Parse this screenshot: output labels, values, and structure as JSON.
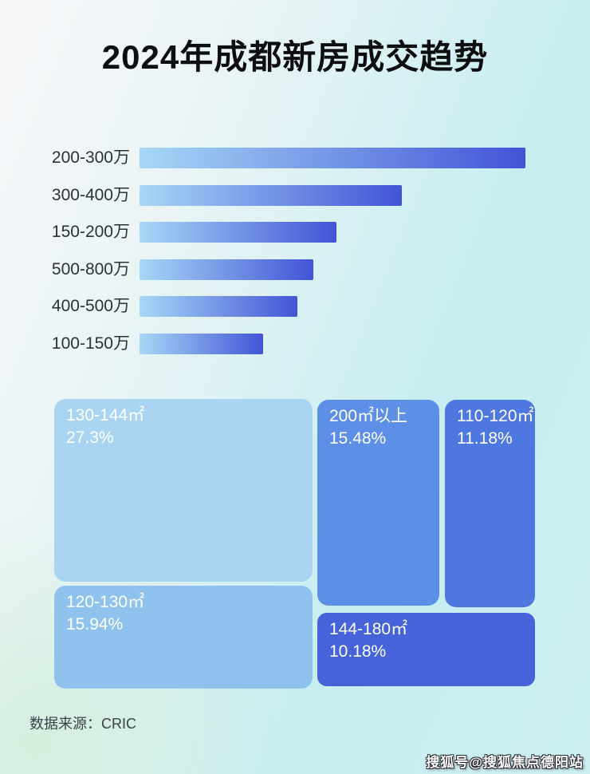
{
  "title": "2024年成都新房成交趋势",
  "source": {
    "label": "数据来源：CRIC"
  },
  "watermark": "搜狐号@搜狐焦点德阳站",
  "colors": {
    "bar_gradient_start": "#a7d7f5",
    "bar_gradient_end": "#4254d6",
    "treemap_text": "#ffffff",
    "label_text": "#2b3138"
  },
  "chart_data": [
    {
      "type": "bar",
      "orientation": "horizontal",
      "title": "新房成交金额段排序（无数值标注，长度按像素估算）",
      "categories": [
        "200-300万",
        "300-400万",
        "150-200万",
        "500-800万",
        "400-500万",
        "100-150万"
      ],
      "values_pct_of_longest": [
        100,
        68,
        51,
        45,
        41,
        32
      ],
      "xlabel": "",
      "ylabel": "",
      "grid": false,
      "legend": false,
      "bar_gradient": [
        "#a7d7f5",
        "#4254d6"
      ]
    },
    {
      "type": "treemap",
      "title": "新房成交面积段占比",
      "tiles": [
        {
          "label": "130-144㎡",
          "value_pct": 27.3,
          "pct_label": "27.3%",
          "color": "#a9d5f3"
        },
        {
          "label": "120-130㎡",
          "value_pct": 15.94,
          "pct_label": "15.94%",
          "color": "#8fc3ee"
        },
        {
          "label": "200㎡以上",
          "value_pct": 15.48,
          "pct_label": "15.48%",
          "color": "#5e8fe6"
        },
        {
          "label": "110-120㎡",
          "value_pct": 11.18,
          "pct_label": "11.18%",
          "color": "#4f77e0"
        },
        {
          "label": "144-180㎡",
          "value_pct": 10.18,
          "pct_label": "10.18%",
          "color": "#4663d9"
        }
      ],
      "text_color": "#ffffff"
    }
  ]
}
